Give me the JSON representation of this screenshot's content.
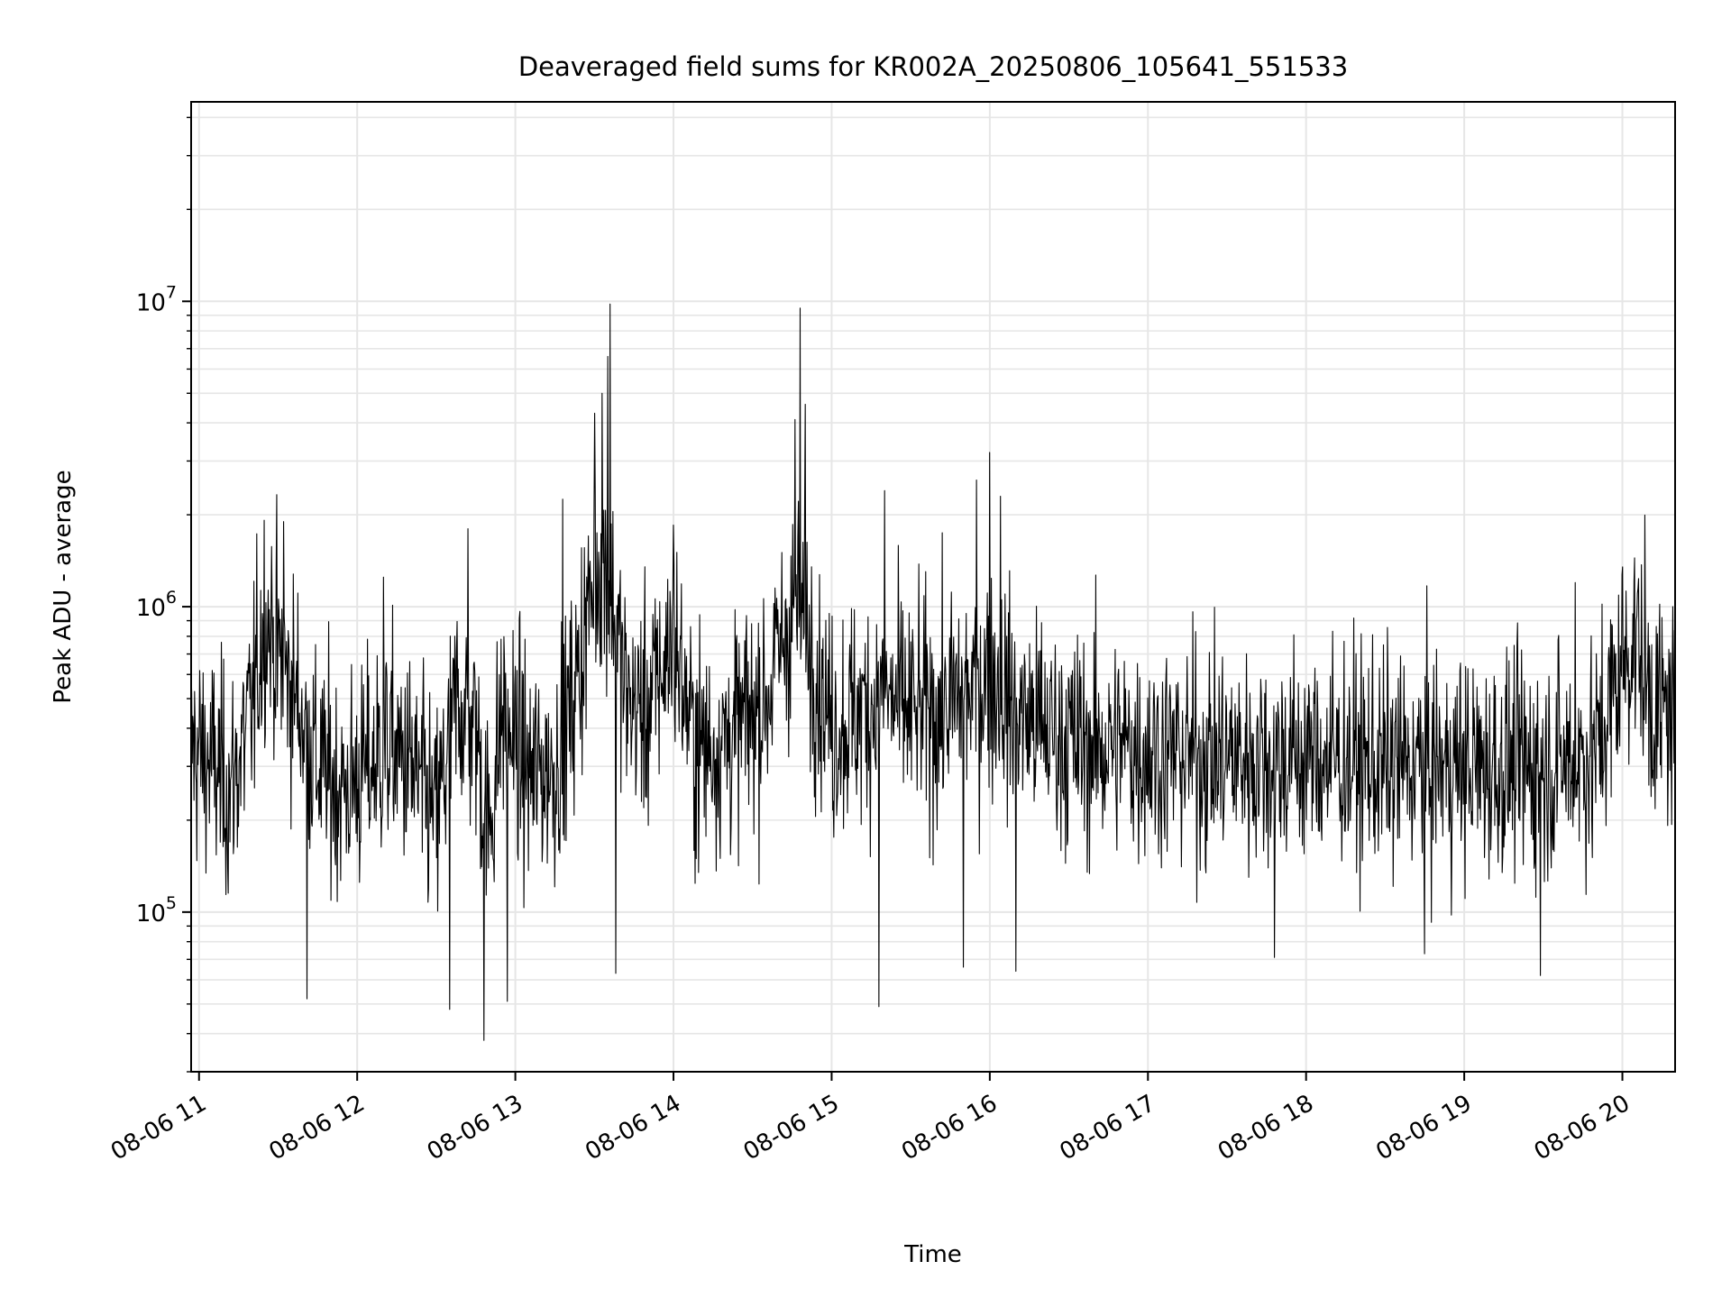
{
  "chart_data": {
    "type": "line",
    "title": "Deaveraged field sums for KR002A_20250806_105641_551533",
    "xlabel": "Time",
    "ylabel": "Peak ADU - average",
    "yscale": "log",
    "ylim": [
      30000,
      45000000
    ],
    "xlim": [
      "2025-08-06 10:57",
      "2025-08-06 20:20"
    ],
    "grid": true,
    "line_color": "#000000",
    "x_ticks": [
      {
        "label": "08-06 11",
        "t": "2025-08-06 11:00"
      },
      {
        "label": "08-06 12",
        "t": "2025-08-06 12:00"
      },
      {
        "label": "08-06 13",
        "t": "2025-08-06 13:00"
      },
      {
        "label": "08-06 14",
        "t": "2025-08-06 14:00"
      },
      {
        "label": "08-06 15",
        "t": "2025-08-06 15:00"
      },
      {
        "label": "08-06 16",
        "t": "2025-08-06 16:00"
      },
      {
        "label": "08-06 17",
        "t": "2025-08-06 17:00"
      },
      {
        "label": "08-06 18",
        "t": "2025-08-06 18:00"
      },
      {
        "label": "08-06 19",
        "t": "2025-08-06 19:00"
      },
      {
        "label": "08-06 20",
        "t": "2025-08-06 20:00"
      }
    ],
    "y_ticks": [
      {
        "base": "10",
        "exp": "5",
        "value": 100000
      },
      {
        "base": "10",
        "exp": "6",
        "value": 1000000
      },
      {
        "base": "10",
        "exp": "7",
        "value": 10000000
      }
    ],
    "series": [
      {
        "name": "",
        "points": [
          [
            "2025-08-06 10:57",
            350000
          ],
          [
            "2025-08-06 11:05",
            300000
          ],
          [
            "2025-08-06 11:12",
            250000
          ],
          [
            "2025-08-06 11:20",
            450000
          ],
          [
            "2025-08-06 11:25",
            950000
          ],
          [
            "2025-08-06 11:30",
            700000
          ],
          [
            "2025-08-06 11:37",
            500000
          ],
          [
            "2025-08-06 11:45",
            300000
          ],
          [
            "2025-08-06 11:55",
            250000
          ],
          [
            "2025-08-06 12:05",
            300000
          ],
          [
            "2025-08-06 12:12",
            350000
          ],
          [
            "2025-08-06 12:20",
            300000
          ],
          [
            "2025-08-06 12:30",
            200000
          ],
          [
            "2025-08-06 12:38",
            500000
          ],
          [
            "2025-08-06 12:45",
            400000
          ],
          [
            "2025-08-06 12:50",
            180000
          ],
          [
            "2025-08-06 12:55",
            450000
          ],
          [
            "2025-08-06 13:05",
            280000
          ],
          [
            "2025-08-06 13:15",
            300000
          ],
          [
            "2025-08-06 13:22",
            500000
          ],
          [
            "2025-08-06 13:28",
            1000000
          ],
          [
            "2025-08-06 13:32",
            1400000
          ],
          [
            "2025-08-06 13:36",
            1200000
          ],
          [
            "2025-08-06 13:42",
            500000
          ],
          [
            "2025-08-06 13:50",
            450000
          ],
          [
            "2025-08-06 14:00",
            800000
          ],
          [
            "2025-08-06 14:08",
            350000
          ],
          [
            "2025-08-06 14:15",
            350000
          ],
          [
            "2025-08-06 14:25",
            400000
          ],
          [
            "2025-08-06 14:35",
            500000
          ],
          [
            "2025-08-06 14:42",
            800000
          ],
          [
            "2025-08-06 14:47",
            1000000
          ],
          [
            "2025-08-06 14:53",
            700000
          ],
          [
            "2025-08-06 15:00",
            400000
          ],
          [
            "2025-08-06 15:10",
            450000
          ],
          [
            "2025-08-06 15:20",
            500000
          ],
          [
            "2025-08-06 15:30",
            450000
          ],
          [
            "2025-08-06 15:40",
            450000
          ],
          [
            "2025-08-06 15:50",
            500000
          ],
          [
            "2025-08-06 16:00",
            600000
          ],
          [
            "2025-08-06 16:10",
            450000
          ],
          [
            "2025-08-06 16:20",
            400000
          ],
          [
            "2025-08-06 16:35",
            350000
          ],
          [
            "2025-08-06 16:50",
            350000
          ],
          [
            "2025-08-06 17:10",
            330000
          ],
          [
            "2025-08-06 17:30",
            320000
          ],
          [
            "2025-08-06 17:50",
            320000
          ],
          [
            "2025-08-06 18:10",
            320000
          ],
          [
            "2025-08-06 18:30",
            300000
          ],
          [
            "2025-08-06 18:50",
            300000
          ],
          [
            "2025-08-06 19:10",
            300000
          ],
          [
            "2025-08-06 19:30",
            300000
          ],
          [
            "2025-08-06 19:50",
            330000
          ],
          [
            "2025-08-06 20:00",
            650000
          ],
          [
            "2025-08-06 20:05",
            800000
          ],
          [
            "2025-08-06 20:12",
            450000
          ],
          [
            "2025-08-06 20:20",
            450000
          ]
        ],
        "spikes": [
          [
            "2025-08-06 13:30",
            4300000
          ],
          [
            "2025-08-06 13:33",
            5000000
          ],
          [
            "2025-08-06 13:35",
            6600000
          ],
          [
            "2025-08-06 13:36",
            9800000
          ],
          [
            "2025-08-06 14:46",
            4100000
          ],
          [
            "2025-08-06 14:48",
            9500000
          ],
          [
            "2025-08-06 14:50",
            4600000
          ],
          [
            "2025-08-06 13:18",
            2250000
          ],
          [
            "2025-08-06 16:00",
            3200000
          ],
          [
            "2025-08-06 16:04",
            2300000
          ],
          [
            "2025-08-06 11:32",
            1900000
          ],
          [
            "2025-08-06 12:10",
            1250000
          ],
          [
            "2025-08-06 12:42",
            1800000
          ],
          [
            "2025-08-06 14:00",
            1850000
          ],
          [
            "2025-08-06 15:20",
            2400000
          ],
          [
            "2025-08-06 15:55",
            2600000
          ],
          [
            "2025-08-06 20:00",
            1350000
          ],
          [
            "2025-08-06 19:42",
            1200000
          ]
        ],
        "dips": [
          [
            "2025-08-06 12:48",
            38000
          ],
          [
            "2025-08-06 12:35",
            48000
          ],
          [
            "2025-08-06 11:41",
            52000
          ],
          [
            "2025-08-06 12:57",
            51000
          ],
          [
            "2025-08-06 15:18",
            49000
          ],
          [
            "2025-08-06 13:38",
            63000
          ],
          [
            "2025-08-06 16:10",
            64000
          ],
          [
            "2025-08-06 15:50",
            66000
          ],
          [
            "2025-08-06 17:48",
            71000
          ],
          [
            "2025-08-06 19:29",
            62000
          ],
          [
            "2025-08-06 18:45",
            73000
          ]
        ]
      }
    ]
  }
}
